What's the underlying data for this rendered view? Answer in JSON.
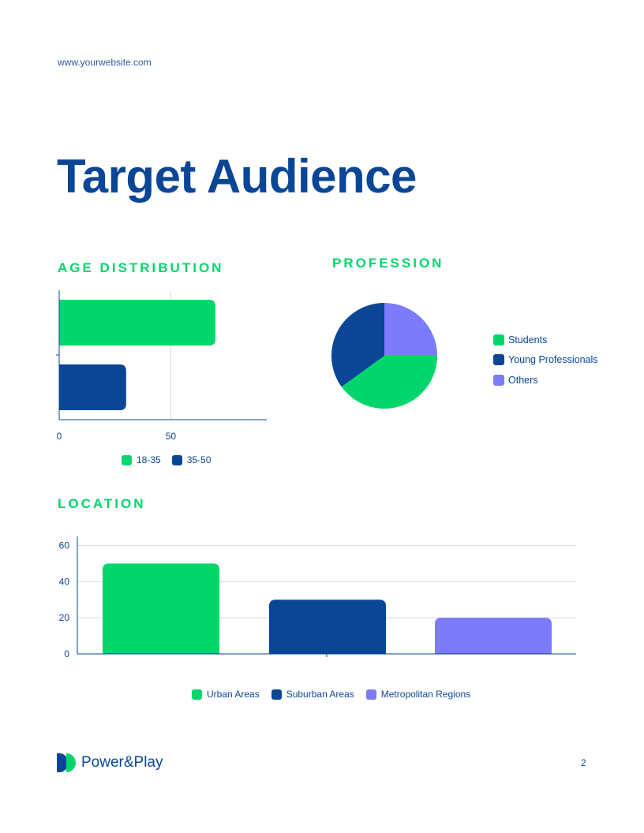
{
  "header": {
    "url": "www.yourwebsite.com"
  },
  "page_title": "Target Audience",
  "colors": {
    "green": "#00d66b",
    "navy": "#0b4696",
    "purple": "#7b7bfb"
  },
  "age": {
    "heading": "AGE DISTRIBUTION",
    "legend": [
      {
        "label": "18-35",
        "color": "#00d66b"
      },
      {
        "label": "35-50",
        "color": "#0b4696"
      }
    ]
  },
  "profession": {
    "heading": "PROFESSION",
    "legend": [
      {
        "label": "Students",
        "color": "#00d66b"
      },
      {
        "label": "Young Professionals",
        "color": "#0b4696"
      },
      {
        "label": "Others",
        "color": "#7b7bfb"
      }
    ]
  },
  "location": {
    "heading": "LOCATION",
    "legend": [
      {
        "label": "Urban Areas",
        "color": "#00d66b"
      },
      {
        "label": "Suburban Areas",
        "color": "#0b4696"
      },
      {
        "label": "Metropolitan Regions",
        "color": "#7b7bfb"
      }
    ]
  },
  "chart_data": [
    {
      "type": "bar",
      "orientation": "horizontal",
      "series": [
        {
          "name": "18-35",
          "values": [
            70
          ]
        },
        {
          "name": "35-50",
          "values": [
            30
          ]
        }
      ],
      "x_ticks": [
        "0",
        "50"
      ],
      "xlim": [
        0,
        93
      ],
      "grid": true,
      "legend": "bottom"
    },
    {
      "type": "pie",
      "categories": [
        "Students",
        "Young Professionals",
        "Others"
      ],
      "values": [
        40,
        35,
        25
      ],
      "legend": "right"
    },
    {
      "type": "bar",
      "categories": [
        "Urban Areas",
        "Suburban Areas",
        "Metropolitan Regions"
      ],
      "values": [
        50,
        30,
        20
      ],
      "y_ticks": [
        "0",
        "20",
        "40",
        "60"
      ],
      "ylim": [
        0,
        65
      ],
      "grid": true,
      "legend": "bottom"
    }
  ],
  "footer": {
    "brand": "Power&Play",
    "page_number": "2"
  }
}
